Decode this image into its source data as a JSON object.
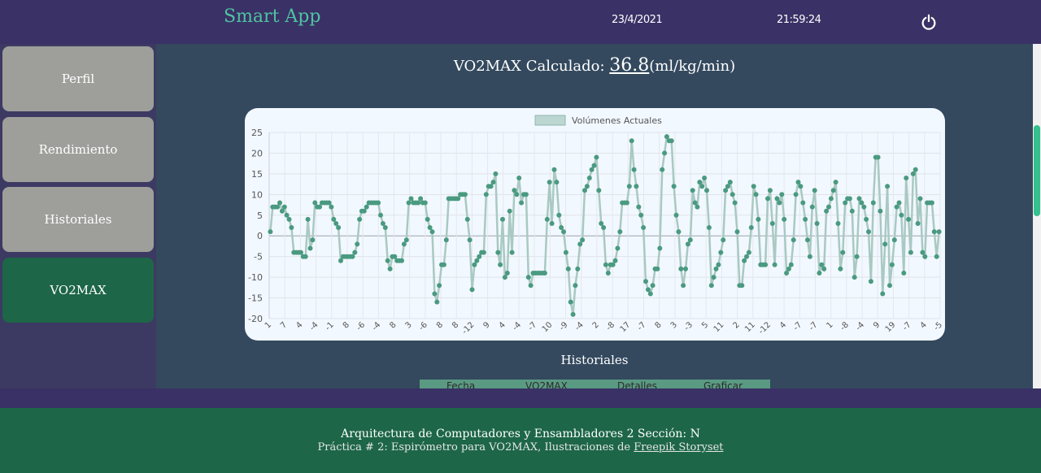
{
  "header": {
    "brand": "Smart App",
    "date": "23/4/2021",
    "time": "21:59:24",
    "power_icon": "power-icon"
  },
  "sidebar": {
    "items": [
      {
        "label": "Perfil",
        "active": false
      },
      {
        "label": "Rendimiento",
        "active": false
      },
      {
        "label": "Historiales",
        "active": false
      },
      {
        "label": "VO2MAX",
        "active": true
      }
    ]
  },
  "main": {
    "vo2_label": "VO2MAX Calculado:",
    "vo2_value": "36.8",
    "vo2_unit": "(ml/kg/min)",
    "historiales_title": "Historiales",
    "table_headers": [
      "Fecha",
      "VO2MAX",
      "Detalles",
      "Graficar"
    ]
  },
  "footer": {
    "line1": "Arquitectura de Computadores y Ensambladores 2 Sección: N",
    "line2_prefix": "Práctica # 2: Espirómetro para VO2MAX, Ilustraciones de",
    "line2_link": "Freepik Storyset"
  },
  "colors": {
    "accent": "#4fc3a1",
    "line": "#a9c9c3",
    "point": "#4a9a80",
    "nav_active": "#1d6648"
  },
  "chart_data": {
    "type": "line",
    "title": "",
    "xlabel": "",
    "ylabel": "",
    "ylim": [
      -20,
      25
    ],
    "yticks": [
      25,
      20,
      15,
      10,
      5,
      0,
      -5,
      -10,
      -15,
      -20
    ],
    "grid": true,
    "legend_position": "top",
    "tick_labels": [
      "1",
      "7",
      "4",
      "-4",
      "-1",
      "8",
      "-6",
      "-4",
      "8",
      "3",
      "-6",
      "8",
      "8",
      "-12",
      "9",
      "4",
      "-4",
      "-7",
      "10",
      "-9",
      "-4",
      "2",
      "-8",
      "17",
      "-7",
      "8",
      "3",
      "-3",
      "5",
      "11",
      "2",
      "11",
      "-12",
      "4",
      "-7",
      "-7",
      "1",
      "-8",
      "-4",
      "9",
      "19",
      "-7",
      "4",
      "-5"
    ],
    "series": [
      {
        "name": "Volúmenes Actuales",
        "values": [
          1,
          7,
          7,
          7,
          8,
          6,
          7,
          5,
          4,
          2,
          -4,
          -4,
          -4,
          -4,
          -5,
          -5,
          4,
          -3,
          -1,
          8,
          7,
          7,
          8,
          8,
          8,
          8,
          7,
          4,
          3,
          2,
          -6,
          -5,
          -5,
          -5,
          -5,
          -5,
          -4,
          -2,
          4,
          6,
          6,
          7,
          8,
          8,
          8,
          8,
          8,
          5,
          3,
          2,
          -6,
          -8,
          -5,
          -5,
          -6,
          -6,
          -6,
          -2,
          -1,
          8,
          9,
          8,
          8,
          8,
          9,
          8,
          8,
          4,
          2,
          1,
          -14,
          -16,
          -12,
          -7,
          -7,
          -1,
          9,
          9,
          9,
          9,
          9,
          10,
          10,
          10,
          4,
          -1,
          -13,
          -7,
          -6,
          -5,
          -4,
          -4,
          10,
          12,
          12,
          13,
          15,
          -4,
          -7,
          4,
          -10,
          -9,
          6,
          -4,
          11,
          10,
          14,
          8,
          10,
          10,
          -10,
          -12,
          -9,
          -9,
          -9,
          -9,
          -9,
          -9,
          4,
          13,
          3,
          16,
          13,
          5,
          2,
          1,
          -4,
          -8,
          -16,
          -19,
          -12,
          -8,
          -2,
          -1,
          11,
          12,
          14,
          16,
          17,
          19,
          11,
          3,
          2,
          -7,
          -9,
          -7,
          -7,
          -6,
          -3,
          1,
          8,
          8,
          8,
          12,
          23,
          16,
          12,
          7,
          5,
          2,
          -11,
          -13,
          -14,
          -12,
          -8,
          -8,
          -3,
          16,
          20,
          24,
          23,
          23,
          12,
          5,
          1,
          -8,
          -12,
          -8,
          -2,
          -1,
          11,
          8,
          7,
          13,
          12,
          14,
          11,
          2,
          -12,
          -10,
          -8,
          -7,
          -4,
          -1,
          11,
          12,
          13,
          10,
          8,
          1,
          -12,
          -12,
          -6,
          -5,
          -4,
          2,
          12,
          10,
          4,
          -7,
          -7,
          -7,
          9,
          11,
          3,
          -7,
          9,
          8,
          10,
          4,
          -9,
          -8,
          -7,
          -1,
          10,
          13,
          12,
          8,
          4,
          -1,
          -5,
          7,
          11,
          3,
          -9,
          -7,
          -8,
          6,
          7,
          9,
          11,
          13,
          3,
          -8,
          -4,
          8,
          9,
          9,
          6,
          -10,
          -5,
          9,
          8,
          7,
          4,
          1,
          -11,
          8,
          19,
          19,
          6,
          -14,
          -2,
          12,
          -12,
          -7,
          -1,
          7,
          8,
          5,
          -9,
          14,
          4,
          -4,
          15,
          16,
          3,
          9,
          -4,
          -5,
          8,
          8,
          8,
          1,
          -5,
          1
        ]
      }
    ]
  }
}
